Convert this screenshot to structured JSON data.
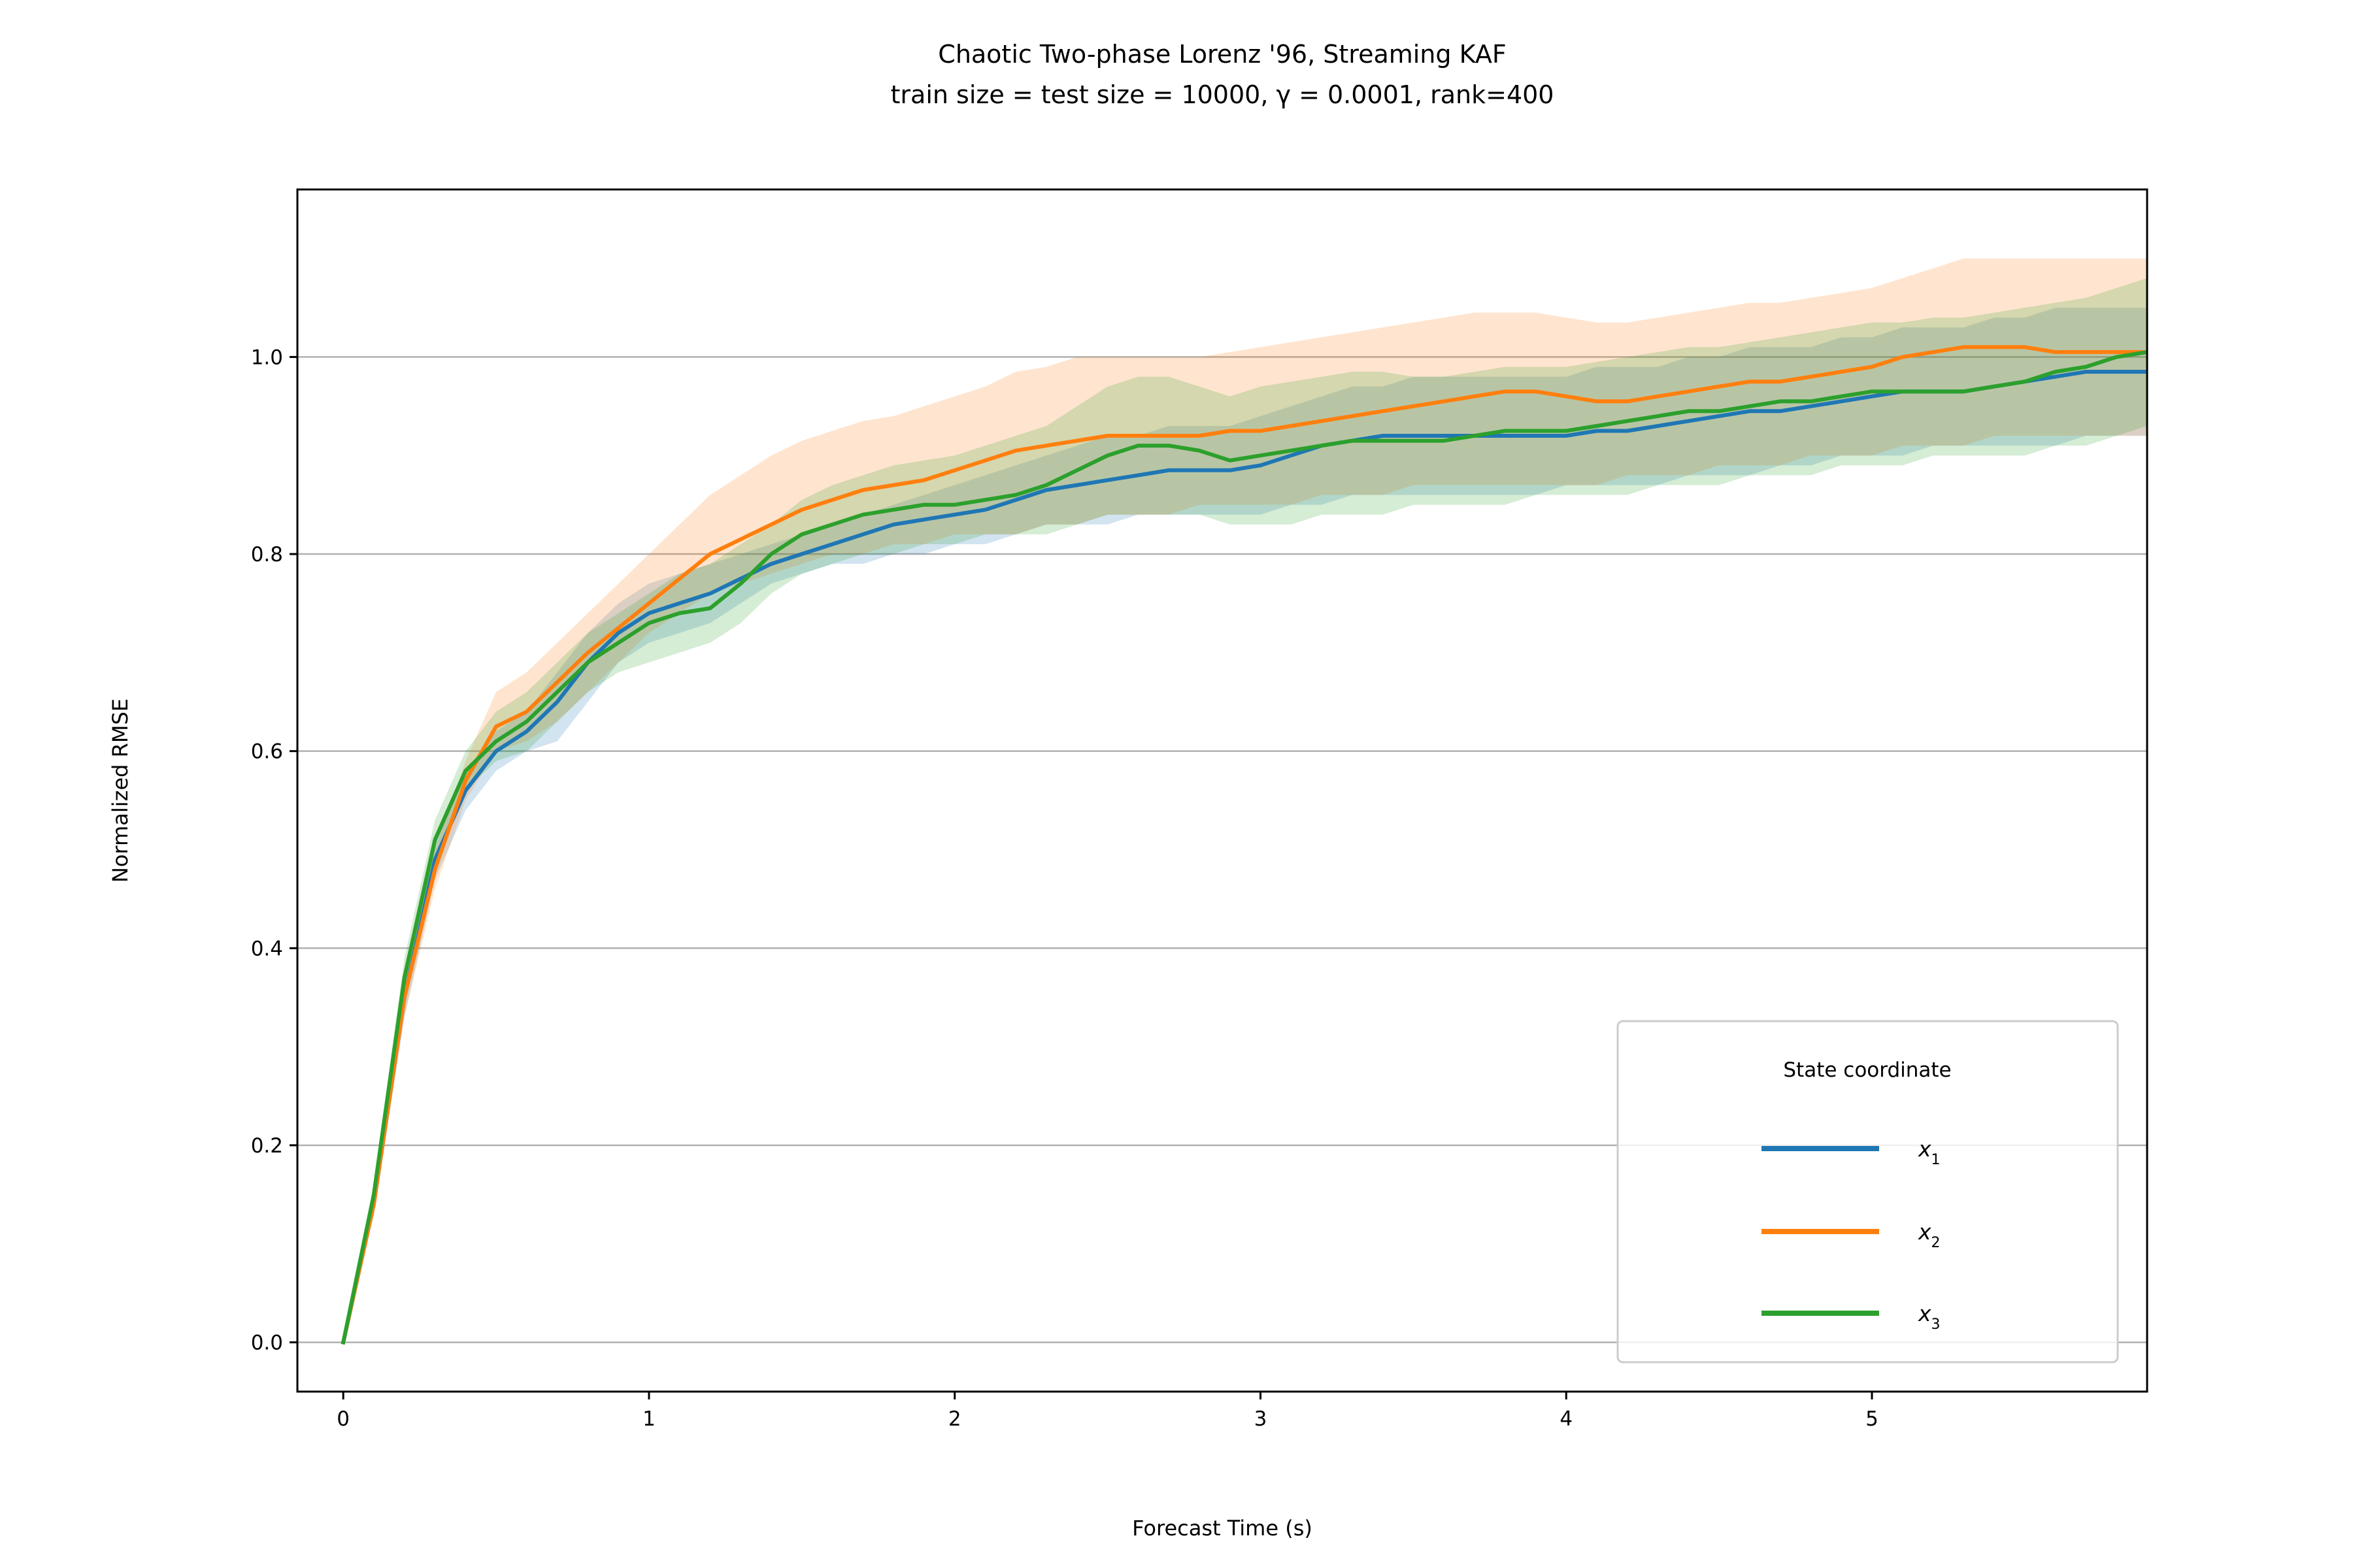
{
  "chart_data": {
    "type": "line",
    "title": "Chaotic Two-phase Lorenz '96, Streaming KAF",
    "subtitle": "train size = test size = 10000, γ = 0.0001, rank=400",
    "xlabel": "Forecast Time (s)",
    "ylabel": "Normalized RMSE",
    "xlim": [
      -0.15,
      5.9
    ],
    "ylim": [
      -0.05,
      1.17
    ],
    "xticks": [
      0,
      1,
      2,
      3,
      4,
      5
    ],
    "yticks": [
      0.0,
      0.2,
      0.4,
      0.6,
      0.8,
      1.0
    ],
    "ytick_labels": [
      "0.0",
      "0.2",
      "0.4",
      "0.6",
      "0.8",
      "1.0"
    ],
    "grid": "horizontal",
    "legend": {
      "title": "State coordinate",
      "position": "lower-right",
      "entries": [
        {
          "name": "x",
          "sub": "1"
        },
        {
          "name": "x",
          "sub": "2"
        },
        {
          "name": "x",
          "sub": "3"
        }
      ]
    },
    "x": [
      0.0,
      0.1,
      0.2,
      0.3,
      0.4,
      0.5,
      0.6,
      0.7,
      0.8,
      0.9,
      1.0,
      1.1,
      1.2,
      1.3,
      1.4,
      1.5,
      1.6,
      1.7,
      1.8,
      1.9,
      2.0,
      2.1,
      2.2,
      2.3,
      2.4,
      2.5,
      2.6,
      2.7,
      2.8,
      2.9,
      3.0,
      3.1,
      3.2,
      3.3,
      3.4,
      3.5,
      3.6,
      3.7,
      3.8,
      3.9,
      4.0,
      4.1,
      4.2,
      4.3,
      4.4,
      4.5,
      4.6,
      4.7,
      4.8,
      4.9,
      5.0,
      5.1,
      5.2,
      5.3,
      5.4,
      5.5,
      5.6,
      5.7,
      5.8,
      5.9
    ],
    "series": [
      {
        "name": "x1",
        "color": "#1f77b4",
        "values": [
          0.0,
          0.14,
          0.35,
          0.49,
          0.56,
          0.6,
          0.62,
          0.65,
          0.69,
          0.72,
          0.74,
          0.75,
          0.76,
          0.775,
          0.79,
          0.8,
          0.81,
          0.82,
          0.83,
          0.835,
          0.84,
          0.845,
          0.855,
          0.865,
          0.87,
          0.875,
          0.88,
          0.885,
          0.885,
          0.885,
          0.89,
          0.9,
          0.91,
          0.915,
          0.92,
          0.92,
          0.92,
          0.92,
          0.92,
          0.92,
          0.92,
          0.925,
          0.925,
          0.93,
          0.935,
          0.94,
          0.945,
          0.945,
          0.95,
          0.955,
          0.96,
          0.965,
          0.965,
          0.965,
          0.97,
          0.975,
          0.98,
          0.985,
          0.985,
          0.985
        ],
        "lower": [
          0.0,
          0.13,
          0.33,
          0.47,
          0.54,
          0.58,
          0.6,
          0.61,
          0.65,
          0.69,
          0.71,
          0.72,
          0.73,
          0.75,
          0.77,
          0.78,
          0.79,
          0.79,
          0.8,
          0.8,
          0.81,
          0.81,
          0.82,
          0.83,
          0.83,
          0.83,
          0.84,
          0.84,
          0.84,
          0.84,
          0.84,
          0.85,
          0.85,
          0.86,
          0.86,
          0.86,
          0.86,
          0.86,
          0.86,
          0.86,
          0.87,
          0.87,
          0.87,
          0.87,
          0.88,
          0.88,
          0.88,
          0.89,
          0.89,
          0.9,
          0.9,
          0.9,
          0.91,
          0.91,
          0.91,
          0.91,
          0.91,
          0.92,
          0.92,
          0.92
        ],
        "upper": [
          0.0,
          0.15,
          0.37,
          0.51,
          0.58,
          0.62,
          0.64,
          0.68,
          0.72,
          0.75,
          0.77,
          0.78,
          0.79,
          0.8,
          0.81,
          0.82,
          0.83,
          0.84,
          0.85,
          0.86,
          0.87,
          0.88,
          0.89,
          0.9,
          0.91,
          0.92,
          0.92,
          0.93,
          0.93,
          0.93,
          0.94,
          0.95,
          0.96,
          0.97,
          0.97,
          0.98,
          0.98,
          0.98,
          0.98,
          0.98,
          0.98,
          0.99,
          0.99,
          0.99,
          1.0,
          1.0,
          1.01,
          1.01,
          1.01,
          1.02,
          1.02,
          1.03,
          1.03,
          1.03,
          1.04,
          1.04,
          1.05,
          1.05,
          1.05,
          1.05
        ]
      },
      {
        "name": "x2",
        "color": "#ff7f0e",
        "values": [
          0.0,
          0.14,
          0.35,
          0.48,
          0.57,
          0.625,
          0.64,
          0.67,
          0.7,
          0.725,
          0.75,
          0.775,
          0.8,
          0.815,
          0.83,
          0.845,
          0.855,
          0.865,
          0.87,
          0.875,
          0.885,
          0.895,
          0.905,
          0.91,
          0.915,
          0.92,
          0.92,
          0.92,
          0.92,
          0.925,
          0.925,
          0.93,
          0.935,
          0.94,
          0.945,
          0.95,
          0.955,
          0.96,
          0.965,
          0.965,
          0.96,
          0.955,
          0.955,
          0.96,
          0.965,
          0.97,
          0.975,
          0.975,
          0.98,
          0.985,
          0.99,
          1.0,
          1.005,
          1.01,
          1.01,
          1.01,
          1.005,
          1.005,
          1.005,
          1.005
        ],
        "lower": [
          0.0,
          0.13,
          0.33,
          0.46,
          0.55,
          0.6,
          0.61,
          0.63,
          0.66,
          0.69,
          0.72,
          0.74,
          0.76,
          0.77,
          0.78,
          0.79,
          0.8,
          0.8,
          0.81,
          0.81,
          0.82,
          0.82,
          0.82,
          0.83,
          0.83,
          0.84,
          0.84,
          0.84,
          0.85,
          0.85,
          0.85,
          0.85,
          0.86,
          0.86,
          0.86,
          0.87,
          0.87,
          0.87,
          0.87,
          0.87,
          0.87,
          0.87,
          0.88,
          0.88,
          0.88,
          0.89,
          0.89,
          0.89,
          0.9,
          0.9,
          0.9,
          0.91,
          0.91,
          0.91,
          0.92,
          0.92,
          0.92,
          0.92,
          0.92,
          0.92
        ],
        "upper": [
          0.0,
          0.15,
          0.37,
          0.5,
          0.59,
          0.66,
          0.68,
          0.71,
          0.74,
          0.77,
          0.8,
          0.83,
          0.86,
          0.88,
          0.9,
          0.915,
          0.925,
          0.935,
          0.94,
          0.95,
          0.96,
          0.97,
          0.985,
          0.99,
          1.0,
          1.0,
          1.0,
          1.0,
          1.0,
          1.005,
          1.01,
          1.015,
          1.02,
          1.025,
          1.03,
          1.035,
          1.04,
          1.045,
          1.045,
          1.045,
          1.04,
          1.035,
          1.035,
          1.04,
          1.045,
          1.05,
          1.055,
          1.055,
          1.06,
          1.065,
          1.07,
          1.08,
          1.09,
          1.1,
          1.1,
          1.1,
          1.1,
          1.1,
          1.1,
          1.1
        ]
      },
      {
        "name": "x3",
        "color": "#2ca02c",
        "values": [
          0.0,
          0.15,
          0.37,
          0.51,
          0.58,
          0.61,
          0.63,
          0.66,
          0.69,
          0.71,
          0.73,
          0.74,
          0.745,
          0.77,
          0.8,
          0.82,
          0.83,
          0.84,
          0.845,
          0.85,
          0.85,
          0.855,
          0.86,
          0.87,
          0.885,
          0.9,
          0.91,
          0.91,
          0.905,
          0.895,
          0.9,
          0.905,
          0.91,
          0.915,
          0.915,
          0.915,
          0.915,
          0.92,
          0.925,
          0.925,
          0.925,
          0.93,
          0.935,
          0.94,
          0.945,
          0.945,
          0.95,
          0.955,
          0.955,
          0.96,
          0.965,
          0.965,
          0.965,
          0.965,
          0.97,
          0.975,
          0.985,
          0.99,
          1.0,
          1.005
        ],
        "lower": [
          0.0,
          0.14,
          0.35,
          0.49,
          0.56,
          0.59,
          0.6,
          0.63,
          0.66,
          0.68,
          0.69,
          0.7,
          0.71,
          0.73,
          0.76,
          0.78,
          0.79,
          0.8,
          0.8,
          0.81,
          0.81,
          0.82,
          0.82,
          0.82,
          0.83,
          0.84,
          0.84,
          0.84,
          0.84,
          0.83,
          0.83,
          0.83,
          0.84,
          0.84,
          0.84,
          0.85,
          0.85,
          0.85,
          0.85,
          0.86,
          0.86,
          0.86,
          0.86,
          0.87,
          0.87,
          0.87,
          0.88,
          0.88,
          0.88,
          0.89,
          0.89,
          0.89,
          0.9,
          0.9,
          0.9,
          0.9,
          0.91,
          0.91,
          0.92,
          0.93
        ],
        "upper": [
          0.0,
          0.16,
          0.39,
          0.53,
          0.6,
          0.64,
          0.66,
          0.69,
          0.72,
          0.74,
          0.76,
          0.78,
          0.79,
          0.81,
          0.83,
          0.855,
          0.87,
          0.88,
          0.89,
          0.895,
          0.9,
          0.91,
          0.92,
          0.93,
          0.95,
          0.97,
          0.98,
          0.98,
          0.97,
          0.96,
          0.97,
          0.975,
          0.98,
          0.985,
          0.985,
          0.98,
          0.98,
          0.985,
          0.99,
          0.99,
          0.99,
          0.995,
          1.0,
          1.005,
          1.01,
          1.01,
          1.015,
          1.02,
          1.025,
          1.03,
          1.035,
          1.035,
          1.04,
          1.04,
          1.045,
          1.05,
          1.055,
          1.06,
          1.07,
          1.08
        ]
      }
    ]
  }
}
